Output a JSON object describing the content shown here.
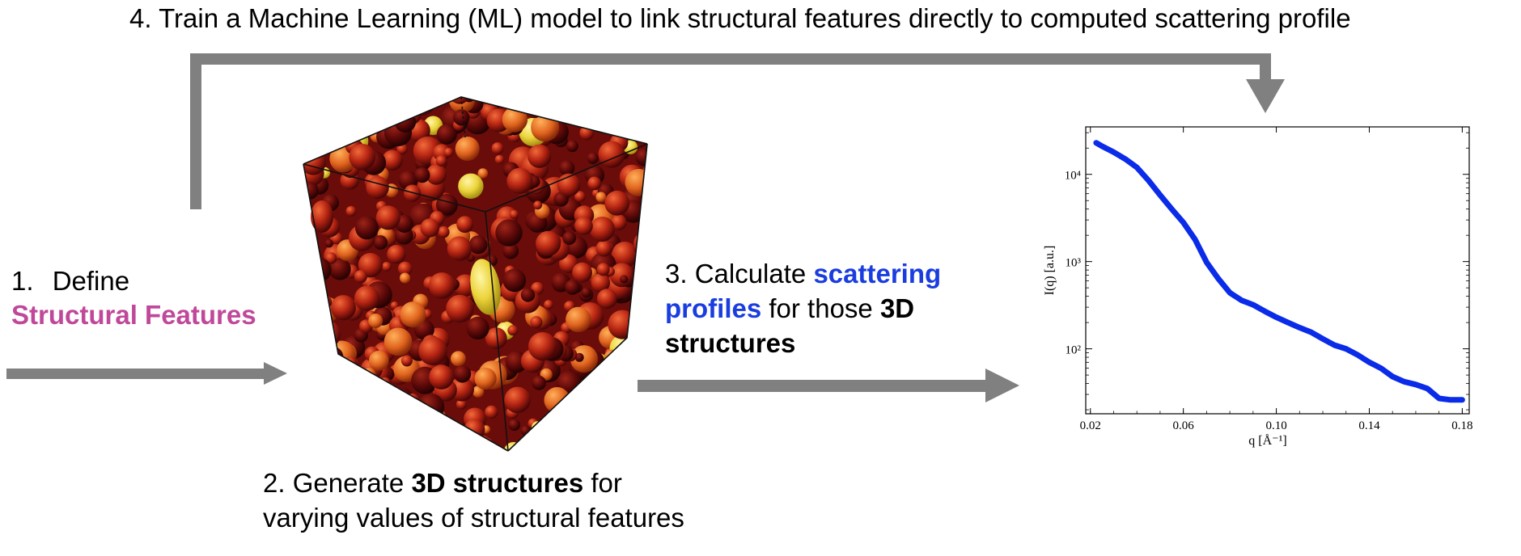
{
  "step4": {
    "text": "4. Train a Machine Learning (ML) model to link structural features directly to computed scattering profile"
  },
  "step1": {
    "number": "1.",
    "word": "Define",
    "highlight": "Structural Features"
  },
  "step2": {
    "prefix": "2. Generate ",
    "bold": "3D structures",
    "suffix": " for",
    "line2": "varying values of structural features"
  },
  "step3": {
    "prefix": "3. Calculate ",
    "highlight1": "scattering",
    "highlight2": "profiles",
    "middle": " for those ",
    "bold1": "3D",
    "bold2": "structures"
  },
  "colors": {
    "arrow": "#808080",
    "structural_features": "#c0489a",
    "scattering": "#1a3de0",
    "curve": "#0a2be8",
    "sphere_palette": [
      "#7a0d0d",
      "#9c1a10",
      "#b52412",
      "#cf3a18",
      "#e0481e",
      "#5a0808",
      "#3a0505",
      "#f07a2a",
      "#e8c83a"
    ]
  },
  "chart_data": {
    "type": "line",
    "title": "",
    "xlabel": "q [Å⁻¹]",
    "ylabel": "I(q) [a.u.]",
    "xlim": [
      0.018,
      0.183
    ],
    "ylim": [
      18,
      35000
    ],
    "yscale": "log",
    "xticks": [
      0.02,
      0.06,
      0.1,
      0.14,
      0.18
    ],
    "xtick_labels": [
      "0.02",
      "0.06",
      "0.10",
      "0.14",
      "0.18"
    ],
    "yticks": [
      100,
      1000,
      10000
    ],
    "ytick_labels": [
      "10²",
      "10³",
      "10⁴"
    ],
    "series": [
      {
        "x": [
          0.0225,
          0.025,
          0.03,
          0.035,
          0.04,
          0.045,
          0.05,
          0.055,
          0.06,
          0.065,
          0.07,
          0.075,
          0.08,
          0.085,
          0.09,
          0.095,
          0.1,
          0.105,
          0.11,
          0.115,
          0.12,
          0.125,
          0.13,
          0.135,
          0.14,
          0.145,
          0.15,
          0.155,
          0.16,
          0.165,
          0.17,
          0.175,
          0.18
        ],
        "y": [
          23000,
          21000,
          18000,
          15000,
          12000,
          8500,
          5800,
          4000,
          2800,
          1800,
          980,
          640,
          440,
          360,
          320,
          270,
          230,
          200,
          175,
          155,
          130,
          110,
          100,
          85,
          70,
          60,
          48,
          42,
          39,
          35,
          27,
          26,
          26
        ]
      }
    ],
    "grid": false
  }
}
